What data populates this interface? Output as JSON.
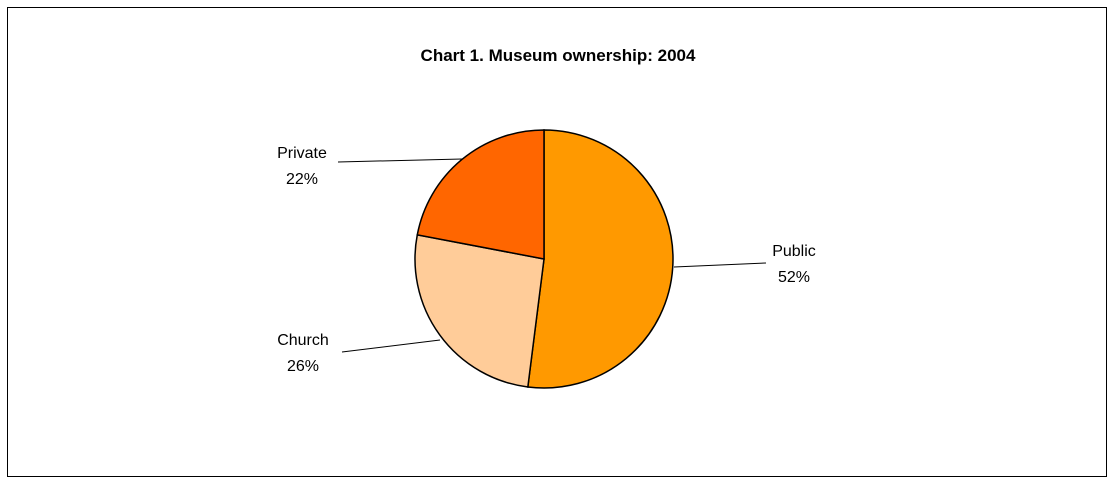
{
  "chart_data": {
    "type": "pie",
    "title": "Chart 1. Museum ownership: 2004",
    "slices": [
      {
        "label": "Public",
        "value": 52,
        "value_text": "52%",
        "color": "#FF9900"
      },
      {
        "label": "Church",
        "value": 26,
        "value_text": "26%",
        "color": "#FFCC99"
      },
      {
        "label": "Private",
        "value": 22,
        "value_text": "22%",
        "color": "#FF6600"
      }
    ],
    "legend": "none",
    "labels": "outside with leader lines",
    "outline_color": "#000000"
  }
}
